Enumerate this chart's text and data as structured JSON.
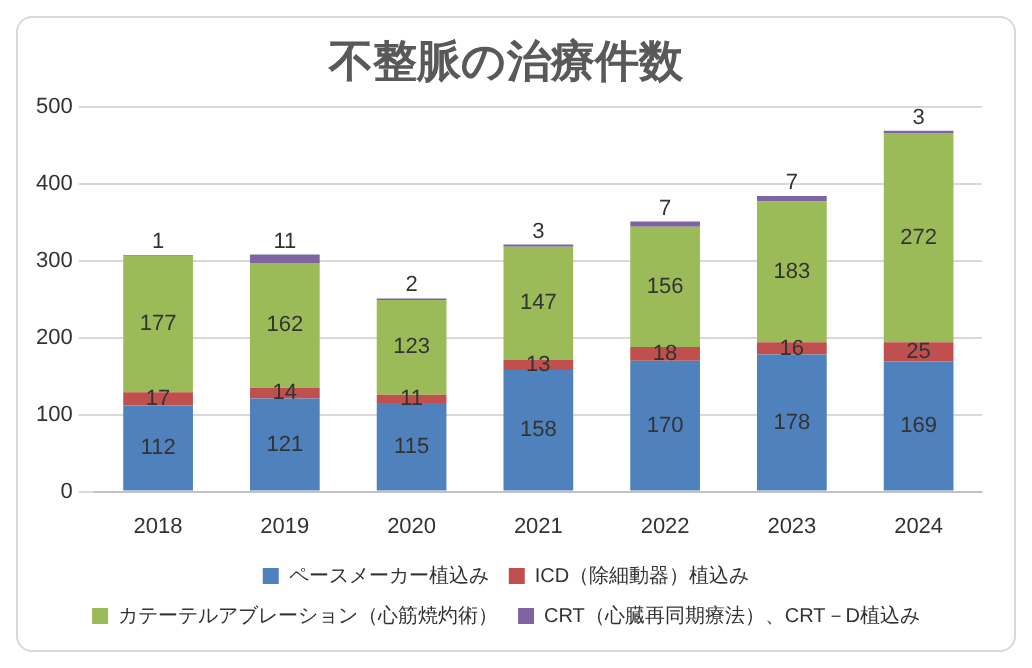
{
  "chart_data": {
    "type": "bar",
    "title": "不整脈の治療件数",
    "stacked": true,
    "categories": [
      "2018",
      "2019",
      "2020",
      "2021",
      "2022",
      "2023",
      "2024"
    ],
    "series": [
      {
        "name": "ペースメーカー植込み",
        "color": "#4f81bd",
        "values": [
          112,
          121,
          115,
          158,
          170,
          178,
          169
        ]
      },
      {
        "name": "ICD（除細動器）植込み",
        "color": "#c0504d",
        "values": [
          17,
          14,
          11,
          13,
          18,
          16,
          25
        ]
      },
      {
        "name": "カテーテルアブレーション（心筋焼灼術）",
        "color": "#9bbb59",
        "values": [
          177,
          162,
          123,
          147,
          156,
          183,
          272
        ]
      },
      {
        "name": "CRT（心臓再同期療法）、CRT－D植込み",
        "color": "#8064a2",
        "values": [
          1,
          11,
          2,
          3,
          7,
          7,
          3
        ]
      }
    ],
    "ylim": [
      0,
      500
    ],
    "yticks": [
      0,
      100,
      200,
      300,
      400,
      500
    ],
    "grid": "y",
    "legend": "bottom",
    "data_labels": true
  }
}
